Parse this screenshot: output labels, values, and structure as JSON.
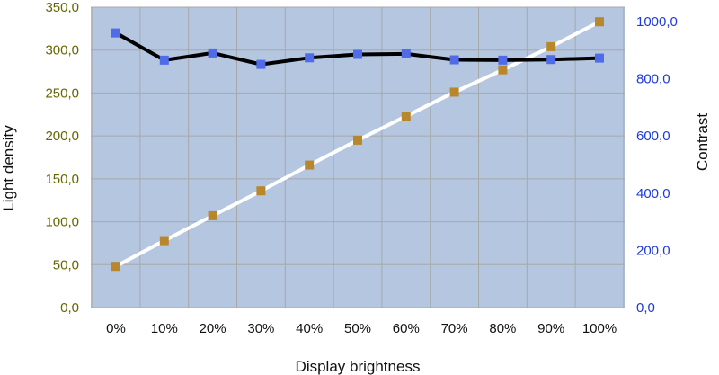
{
  "chart_data": {
    "type": "line",
    "title": "",
    "xlabel": "Display brightness",
    "ylabel_left": "Light density",
    "ylabel_right": "Contrast",
    "categories": [
      "0%",
      "10%",
      "20%",
      "30%",
      "40%",
      "50%",
      "60%",
      "70%",
      "80%",
      "90%",
      "100%"
    ],
    "y_left": {
      "range": [
        0,
        350
      ],
      "ticks": [
        0,
        50,
        100,
        150,
        200,
        250,
        300,
        350
      ],
      "tick_labels": [
        "0,0",
        "50,0",
        "100,0",
        "150,0",
        "200,0",
        "250,0",
        "300,0",
        "350,0"
      ]
    },
    "y_right": {
      "range": [
        0,
        1050
      ],
      "ticks": [
        0,
        200,
        400,
        600,
        800,
        1000
      ],
      "tick_labels": [
        "0,0",
        "200,0",
        "400,0",
        "600,0",
        "800,0",
        "1000,0"
      ]
    },
    "series": [
      {
        "axis": "left",
        "values": [
          48,
          78,
          107,
          136,
          166,
          195,
          223,
          251,
          277,
          304,
          333
        ],
        "line_color": "#ffffff",
        "marker_color": "#b8862b"
      },
      {
        "axis": "right",
        "values": [
          960,
          865,
          890,
          850,
          873,
          885,
          887,
          866,
          865,
          867,
          872
        ],
        "line_color": "#000000",
        "marker_color": "#4f6be8"
      }
    ],
    "grid": true,
    "legend": "none",
    "colors": {
      "plot_background": "#b4c6e0",
      "grid": "#a8a8a8",
      "left_tick_text": "#666600",
      "right_tick_text": "#1f3ad6"
    }
  }
}
